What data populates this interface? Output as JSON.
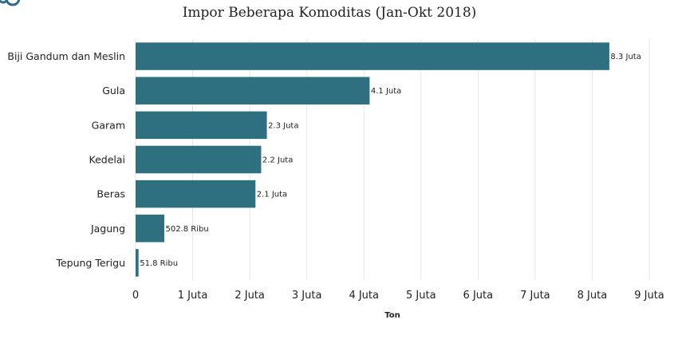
{
  "chart_data": {
    "type": "bar",
    "orientation": "horizontal",
    "title": "Impor Beberapa Komoditas (Jan-Okt 2018)",
    "xlabel": "Ton",
    "ylabel": "",
    "categories": [
      "Biji Gandum dan Meslin",
      "Gula",
      "Garam",
      "Kedelai",
      "Beras",
      "Jagung",
      "Tepung Terigu"
    ],
    "values": [
      8300000,
      4100000,
      2300000,
      2200000,
      2100000,
      502800,
      51800
    ],
    "data_labels": [
      "8.3 Juta",
      "4.1 Juta",
      "2.3 Juta",
      "2.2 Juta",
      "2.1 Juta",
      "502.8 Ribu",
      "51.8 Ribu"
    ],
    "xlim": [
      0,
      9000000
    ],
    "x_ticks": [
      0,
      1000000,
      2000000,
      3000000,
      4000000,
      5000000,
      6000000,
      7000000,
      8000000,
      9000000
    ],
    "x_tick_labels": [
      "0",
      "1 Juta",
      "2 Juta",
      "3 Juta",
      "4 Juta",
      "5 Juta",
      "6 Juta",
      "7 Juta",
      "8 Juta",
      "9 Juta"
    ],
    "grid": "vertical",
    "legend": "none",
    "bar_color": "#2e7080"
  }
}
